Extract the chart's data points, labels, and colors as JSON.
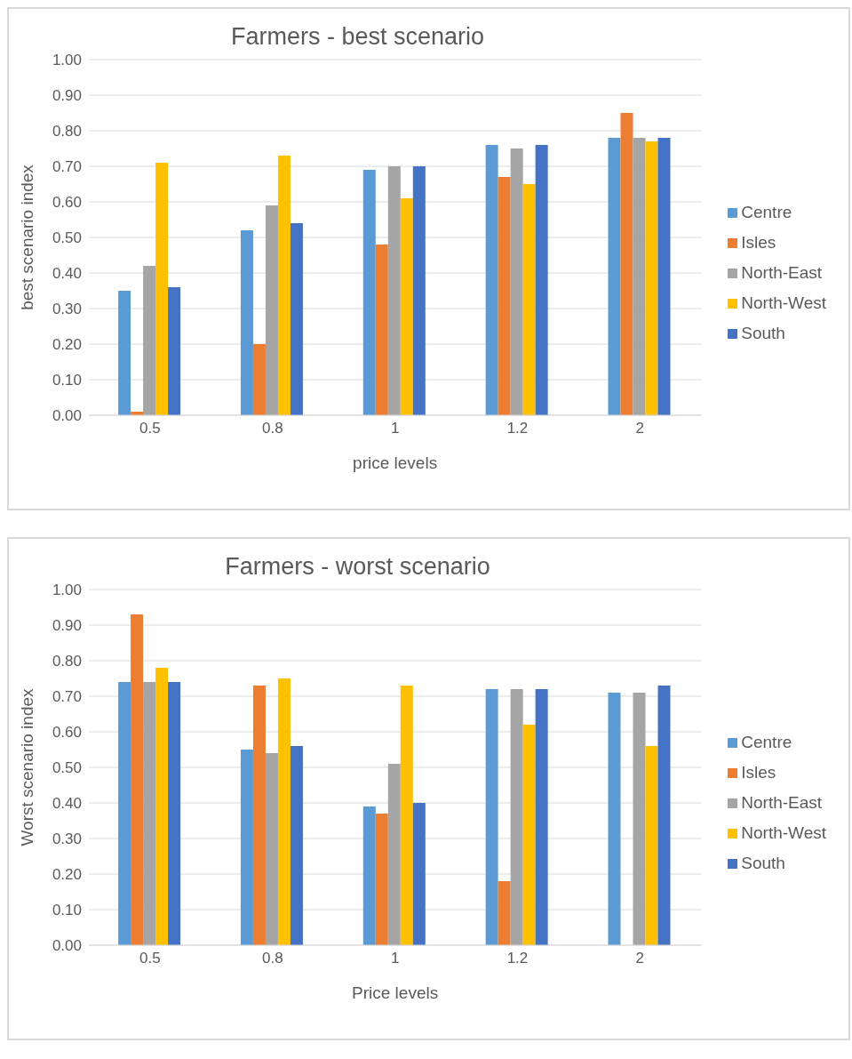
{
  "chart_data": [
    {
      "type": "bar",
      "title": "Farmers - best scenario",
      "xlabel": "price levels",
      "ylabel": "best scenario index",
      "categories": [
        "0.5",
        "0.8",
        "1",
        "1.2",
        "2"
      ],
      "ylim": [
        0,
        1
      ],
      "yticks": [
        {
          "value": 0,
          "label": "0.00"
        },
        {
          "value": 0.1,
          "label": "0.10"
        },
        {
          "value": 0.2,
          "label": "0.20"
        },
        {
          "value": 0.3,
          "label": "0.30"
        },
        {
          "value": 0.4,
          "label": "0.40"
        },
        {
          "value": 0.5,
          "label": "0.50"
        },
        {
          "value": 0.6,
          "label": "0.60"
        },
        {
          "value": 0.7,
          "label": "0.70"
        },
        {
          "value": 0.8,
          "label": "0.80"
        },
        {
          "value": 0.9,
          "label": "0.90"
        },
        {
          "value": 1,
          "label": "1.00"
        }
      ],
      "grid": "y",
      "legend": "right",
      "series": [
        {
          "name": "Centre",
          "color": "#5b9bd5",
          "values": [
            0.35,
            0.52,
            0.69,
            0.76,
            0.78
          ]
        },
        {
          "name": "Isles",
          "color": "#ed7d31",
          "values": [
            0.01,
            0.2,
            0.48,
            0.67,
            0.85
          ]
        },
        {
          "name": "North-East",
          "color": "#a5a5a5",
          "values": [
            0.42,
            0.59,
            0.7,
            0.75,
            0.78
          ]
        },
        {
          "name": "North-West",
          "color": "#ffc000",
          "values": [
            0.71,
            0.73,
            0.61,
            0.65,
            0.77
          ]
        },
        {
          "name": "South",
          "color": "#4472c4",
          "values": [
            0.36,
            0.54,
            0.7,
            0.76,
            0.78
          ]
        }
      ]
    },
    {
      "type": "bar",
      "title": "Farmers - worst scenario",
      "xlabel": "Price levels",
      "ylabel": "Worst scenario index",
      "categories": [
        "0.5",
        "0.8",
        "1",
        "1.2",
        "2"
      ],
      "ylim": [
        0,
        1
      ],
      "yticks": [
        {
          "value": 0,
          "label": "0.00"
        },
        {
          "value": 0.1,
          "label": "0.10"
        },
        {
          "value": 0.2,
          "label": "0.20"
        },
        {
          "value": 0.3,
          "label": "0.30"
        },
        {
          "value": 0.4,
          "label": "0.40"
        },
        {
          "value": 0.5,
          "label": "0.50"
        },
        {
          "value": 0.6,
          "label": "0.60"
        },
        {
          "value": 0.7,
          "label": "0.70"
        },
        {
          "value": 0.8,
          "label": "0.80"
        },
        {
          "value": 0.9,
          "label": "0.90"
        },
        {
          "value": 1,
          "label": "1.00"
        }
      ],
      "grid": "y",
      "legend": "right",
      "series": [
        {
          "name": "Centre",
          "color": "#5b9bd5",
          "values": [
            0.74,
            0.55,
            0.39,
            0.72,
            0.71
          ]
        },
        {
          "name": "Isles",
          "color": "#ed7d31",
          "values": [
            0.93,
            0.73,
            0.37,
            0.18,
            null
          ]
        },
        {
          "name": "North-East",
          "color": "#a5a5a5",
          "values": [
            0.74,
            0.54,
            0.51,
            0.72,
            0.71
          ]
        },
        {
          "name": "North-West",
          "color": "#ffc000",
          "values": [
            0.78,
            0.75,
            0.73,
            0.62,
            0.56
          ]
        },
        {
          "name": "South",
          "color": "#4472c4",
          "values": [
            0.74,
            0.56,
            0.4,
            0.72,
            0.73
          ]
        }
      ]
    }
  ]
}
